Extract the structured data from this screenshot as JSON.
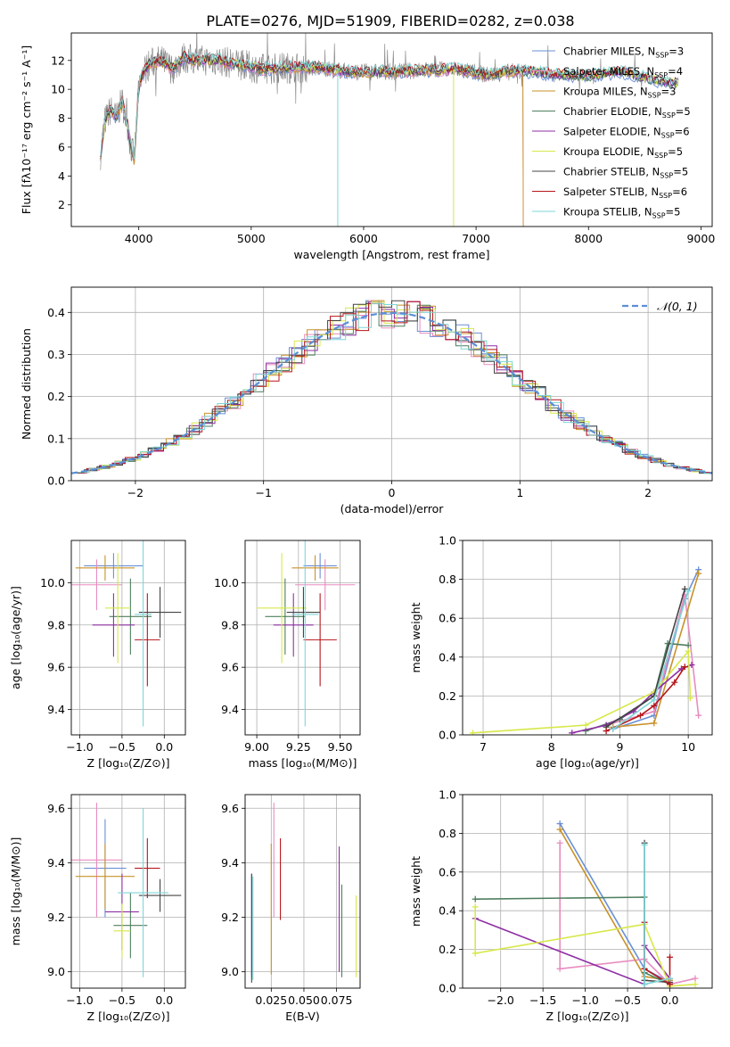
{
  "title": "PLATE=0276, MJD=51909, FIBERID=0282, z=0.038",
  "colors": [
    "#6a8fd6",
    "#e88cbf",
    "#c8922a",
    "#4f7f5f",
    "#8e2fa5",
    "#d7e84a",
    "#444444",
    "#b5161b",
    "#7fd6d8"
  ],
  "gaussian_color": "#5b8ed6",
  "chart_data": [
    {
      "id": "spectrum",
      "type": "line",
      "xlabel": "wavelength [Angstrom, rest frame]",
      "ylabel": "Flux [fλ10⁻¹⁷ erg cm⁻² s⁻¹ A⁻¹]",
      "xlim": [
        3400,
        9100
      ],
      "ylim": [
        0.5,
        13.9
      ],
      "xticks": [
        4000,
        5000,
        6000,
        7000,
        8000,
        9000
      ],
      "yticks": [
        2,
        4,
        6,
        8,
        10,
        12
      ],
      "legend_position": "top-right",
      "legend": [
        {
          "name": "Chabrier MILES",
          "nssp": "3"
        },
        {
          "name": "Salpeter MILES",
          "nssp": "4"
        },
        {
          "name": "Kroupa MILES",
          "nssp": "3"
        },
        {
          "name": "Chabrier ELODIE",
          "nssp": "5"
        },
        {
          "name": "Salpeter ELODIE",
          "nssp": "6"
        },
        {
          "name": "Kroupa ELODIE",
          "nssp": "5"
        },
        {
          "name": "Chabrier STELIB",
          "nssp": "5"
        },
        {
          "name": "Salpeter STELIB",
          "nssp": "6"
        },
        {
          "name": "Kroupa STELIB",
          "nssp": "5"
        }
      ],
      "nssp_prefix": "N",
      "nssp_sub": "SSP",
      "model_x": [
        3660,
        3700,
        3750,
        3800,
        3850,
        3900,
        3930,
        3960,
        4000,
        4050,
        4100,
        4200,
        4300,
        4400,
        4500,
        4700,
        4900,
        5100,
        5300,
        5600,
        5900,
        6200,
        6500,
        6800,
        7100,
        7400,
        7700,
        8000,
        8300,
        8600,
        8800
      ],
      "model_y": [
        5.5,
        7.8,
        8.6,
        8.0,
        9.2,
        7.5,
        6.0,
        5.2,
        10.2,
        11.3,
        11.8,
        12.0,
        11.4,
        12.2,
        12.0,
        12.0,
        11.7,
        11.4,
        11.5,
        11.5,
        11.2,
        11.2,
        11.3,
        11.4,
        11.0,
        11.3,
        11.0,
        10.9,
        11.2,
        10.6,
        10.4
      ]
    },
    {
      "id": "residuals",
      "type": "line",
      "xlabel": "(data-model)/error",
      "ylabel": "Normed distribution",
      "xlim": [
        -2.5,
        2.5
      ],
      "ylim": [
        0,
        0.46
      ],
      "xticks": [
        -2,
        -1,
        0,
        1,
        2
      ],
      "yticks": [
        0.0,
        0.1,
        0.2,
        0.3,
        0.4
      ],
      "legend_position": "top-right",
      "gaussian_label": "𝒩(0, 1)"
    },
    {
      "id": "age-vs-z",
      "type": "scatter",
      "xlabel": "Z [log₁₀(Z/Z⊙)]",
      "ylabel": "age  [log₁₀(age/yr)]",
      "xlim": [
        -1.1,
        0.25
      ],
      "ylim": [
        9.28,
        10.2
      ],
      "xticks": [
        -1.0,
        -0.5,
        0.0
      ],
      "yticks": [
        9.4,
        9.6,
        9.8,
        10.0
      ],
      "points": [
        {
          "x": -0.6,
          "y": 10.08,
          "xerr": 0.35,
          "yerr": 0.06
        },
        {
          "x": -0.8,
          "y": 9.99,
          "xerr": 0.3,
          "yerr": 0.12
        },
        {
          "x": -0.7,
          "y": 10.07,
          "xerr": 0.35,
          "yerr": 0.06
        },
        {
          "x": -0.4,
          "y": 9.84,
          "xerr": 0.25,
          "yerr": 0.18
        },
        {
          "x": -0.6,
          "y": 9.8,
          "xerr": 0.25,
          "yerr": 0.15
        },
        {
          "x": -0.55,
          "y": 9.88,
          "xerr": 0.15,
          "yerr": 0.26
        },
        {
          "x": -0.05,
          "y": 9.86,
          "xerr": 0.25,
          "yerr": 0.12
        },
        {
          "x": -0.2,
          "y": 9.73,
          "xerr": 0.15,
          "yerr": 0.22
        },
        {
          "x": -0.25,
          "y": 9.85,
          "xerr": 0.1,
          "yerr": 0.53
        }
      ]
    },
    {
      "id": "age-vs-mass",
      "type": "scatter",
      "xlabel": "mass [log₁₀(M/M⊙)]",
      "ylabel": "",
      "xlim": [
        8.93,
        9.62
      ],
      "ylim": [
        9.28,
        10.2
      ],
      "xticks": [
        9.0,
        9.25,
        9.5
      ],
      "yticks": [
        9.4,
        9.6,
        9.8,
        10.0
      ],
      "points": [
        {
          "x": 9.38,
          "y": 10.08,
          "xerr": 0.1,
          "yerr": 0.06
        },
        {
          "x": 9.41,
          "y": 9.99,
          "xerr": 0.18,
          "yerr": 0.12
        },
        {
          "x": 9.35,
          "y": 10.07,
          "xerr": 0.14,
          "yerr": 0.06
        },
        {
          "x": 9.17,
          "y": 9.84,
          "xerr": 0.12,
          "yerr": 0.18
        },
        {
          "x": 9.22,
          "y": 9.8,
          "xerr": 0.12,
          "yerr": 0.15
        },
        {
          "x": 9.15,
          "y": 9.88,
          "xerr": 0.15,
          "yerr": 0.26
        },
        {
          "x": 9.28,
          "y": 9.86,
          "xerr": 0.1,
          "yerr": 0.12
        },
        {
          "x": 9.38,
          "y": 9.73,
          "xerr": 0.1,
          "yerr": 0.22
        },
        {
          "x": 9.29,
          "y": 9.85,
          "xerr": 0.08,
          "yerr": 0.53
        }
      ]
    },
    {
      "id": "mass-weight-vs-age",
      "type": "line",
      "xlabel": "age  [log₁₀(age/yr)]",
      "ylabel": "mass weight",
      "xlim": [
        6.7,
        10.35
      ],
      "ylim": [
        0.0,
        1.0
      ],
      "xticks": [
        7,
        8,
        9,
        10
      ],
      "yticks": [
        0.0,
        0.2,
        0.4,
        0.6,
        0.8,
        1.0
      ],
      "series": [
        {
          "x": [
            8.9,
            9.5,
            9.95,
            10.15
          ],
          "y": [
            0.03,
            0.1,
            0.7,
            0.85
          ]
        },
        {
          "x": [
            8.8,
            9.5,
            9.95,
            10.15
          ],
          "y": [
            0.05,
            0.12,
            0.72,
            0.1
          ]
        },
        {
          "x": [
            8.9,
            9.5,
            10.15
          ],
          "y": [
            0.04,
            0.06,
            0.83
          ]
        },
        {
          "x": [
            8.5,
            9.0,
            9.5,
            9.7,
            10.0
          ],
          "y": [
            0.02,
            0.08,
            0.2,
            0.47,
            0.46
          ]
        },
        {
          "x": [
            8.3,
            8.8,
            9.2,
            9.5,
            9.9,
            10.05
          ],
          "y": [
            0.01,
            0.05,
            0.12,
            0.22,
            0.34,
            0.36
          ]
        },
        {
          "x": [
            6.85,
            8.5,
            9.5,
            10.0,
            10.03
          ],
          "y": [
            0.01,
            0.05,
            0.22,
            0.43,
            0.19
          ]
        },
        {
          "x": [
            8.8,
            9.5,
            9.95
          ],
          "y": [
            0.04,
            0.2,
            0.75
          ]
        },
        {
          "x": [
            8.8,
            9.3,
            9.5,
            9.8,
            9.95
          ],
          "y": [
            0.02,
            0.1,
            0.15,
            0.27,
            0.35
          ]
        },
        {
          "x": [
            8.9,
            9.5,
            10.0
          ],
          "y": [
            0.03,
            0.18,
            0.74
          ]
        }
      ]
    },
    {
      "id": "mass-vs-z",
      "type": "scatter",
      "xlabel": "Z [log₁₀(Z/Z⊙)]",
      "ylabel": "mass [log₁₀(M/M⊙)]",
      "xlim": [
        -1.1,
        0.25
      ],
      "ylim": [
        8.94,
        9.65
      ],
      "xticks": [
        -1.0,
        -0.5,
        0.0
      ],
      "yticks": [
        9.0,
        9.2,
        9.4,
        9.6
      ],
      "points": [
        {
          "x": -0.7,
          "y": 9.38,
          "xerr": 0.25,
          "yerr": 0.18
        },
        {
          "x": -0.8,
          "y": 9.41,
          "xerr": 0.3,
          "yerr": 0.21
        },
        {
          "x": -0.7,
          "y": 9.35,
          "xerr": 0.35,
          "yerr": 0.12
        },
        {
          "x": -0.4,
          "y": 9.17,
          "xerr": 0.2,
          "yerr": 0.12
        },
        {
          "x": -0.5,
          "y": 9.22,
          "xerr": 0.2,
          "yerr": 0.14
        },
        {
          "x": -0.5,
          "y": 9.15,
          "xerr": 0.1,
          "yerr": 0.1
        },
        {
          "x": -0.05,
          "y": 9.28,
          "xerr": 0.25,
          "yerr": 0.06
        },
        {
          "x": -0.2,
          "y": 9.38,
          "xerr": 0.15,
          "yerr": 0.11
        },
        {
          "x": -0.25,
          "y": 9.29,
          "xerr": 0.3,
          "yerr": 0.31
        }
      ]
    },
    {
      "id": "mass-vs-ebv",
      "type": "scatter",
      "xlabel": "E(B-V)",
      "ylabel": "",
      "xlim": [
        0.005,
        0.093
      ],
      "ylim": [
        8.94,
        9.65
      ],
      "xticks": [
        0.025,
        0.05,
        0.075
      ],
      "xticklabels": [
        "0.025",
        "0.050",
        "0.075"
      ],
      "yticks": [
        9.0,
        9.2,
        9.4,
        9.6
      ],
      "points": [
        {
          "x": 0.01,
          "y": 9.17,
          "yerr": 0.19
        },
        {
          "x": 0.027,
          "y": 9.41,
          "yerr": 0.21
        },
        {
          "x": 0.025,
          "y": 9.23,
          "yerr": 0.24
        },
        {
          "x": 0.079,
          "y": 9.15,
          "yerr": 0.17
        },
        {
          "x": 0.077,
          "y": 9.23,
          "yerr": 0.23
        },
        {
          "x": 0.09,
          "y": 9.13,
          "yerr": 0.15
        },
        {
          "x": 0.01,
          "y": 9.16,
          "yerr": 0.2
        },
        {
          "x": 0.032,
          "y": 9.34,
          "yerr": 0.15
        },
        {
          "x": 0.011,
          "y": 9.16,
          "yerr": 0.19
        }
      ]
    },
    {
      "id": "mass-weight-vs-z",
      "type": "line",
      "xlabel": "Z [log₁₀(Z/Z⊙)]",
      "ylabel": "mass weight",
      "xlim": [
        -2.45,
        0.5
      ],
      "ylim": [
        0.0,
        1.0
      ],
      "xticks": [
        -2.0,
        -1.5,
        -1.0,
        -0.5,
        0.0
      ],
      "yticks": [
        0.0,
        0.2,
        0.4,
        0.6,
        0.8,
        1.0
      ],
      "series": [
        {
          "x": [
            -1.3,
            -0.3,
            0.0
          ],
          "y": [
            0.85,
            0.1,
            0.03
          ]
        },
        {
          "x": [
            -1.3,
            -1.3,
            -0.3,
            0.0,
            0.3
          ],
          "y": [
            0.75,
            0.1,
            0.15,
            0.02,
            0.05
          ]
        },
        {
          "x": [
            -1.3,
            -0.3,
            0.0
          ],
          "y": [
            0.82,
            0.06,
            0.04
          ]
        },
        {
          "x": [
            -2.3,
            -0.3,
            -0.3,
            0.0
          ],
          "y": [
            0.46,
            0.47,
            0.08,
            0.02
          ]
        },
        {
          "x": [
            -2.3,
            -0.3,
            -0.3,
            0.0
          ],
          "y": [
            0.36,
            0.02,
            0.22,
            0.05
          ]
        },
        {
          "x": [
            -2.3,
            -2.3,
            -0.3,
            0.0,
            0.3
          ],
          "y": [
            0.42,
            0.18,
            0.33,
            0.01,
            0.02
          ]
        },
        {
          "x": [
            -0.3,
            -0.3,
            0.0
          ],
          "y": [
            0.75,
            0.04,
            0.03
          ]
        },
        {
          "x": [
            -0.3,
            -0.3,
            0.0,
            0.0
          ],
          "y": [
            0.34,
            0.1,
            0.02,
            0.16
          ]
        },
        {
          "x": [
            -0.3,
            -0.3,
            0.0
          ],
          "y": [
            0.74,
            0.02,
            0.05
          ]
        }
      ]
    }
  ]
}
